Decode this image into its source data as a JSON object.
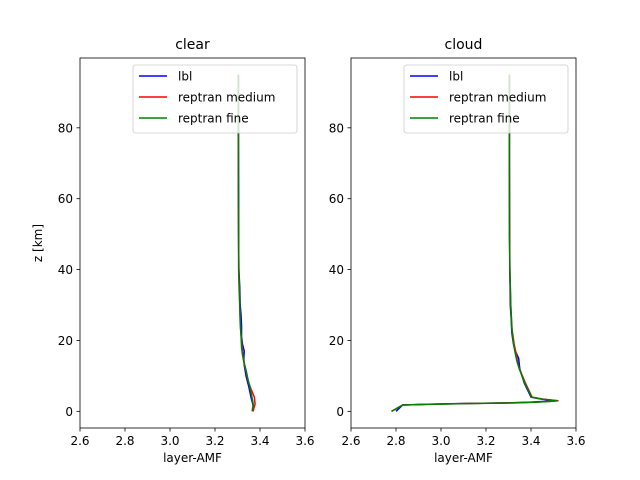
{
  "chart_data": [
    {
      "type": "line",
      "title": "clear",
      "xlabel": "layer-AMF",
      "ylabel": "z [km]",
      "xlim": [
        2.6,
        3.6
      ],
      "ylim": [
        -4.7,
        99.7
      ],
      "xticks": [
        "2.6",
        "2.8",
        "3.0",
        "3.2",
        "3.4",
        "3.6"
      ],
      "yticks": [
        "0",
        "20",
        "40",
        "60",
        "80"
      ],
      "legend_position": "top-right",
      "series": [
        {
          "name": "lbl",
          "color": "#0000ff",
          "x": [
            3.37,
            3.372,
            3.368,
            3.36,
            3.35,
            3.338,
            3.33,
            3.328,
            3.33,
            3.322,
            3.318,
            3.318,
            3.316,
            3.312,
            3.31,
            3.306,
            3.305,
            3.305,
            3.304,
            3.304
          ],
          "y": [
            0,
            1,
            2,
            4,
            7,
            10,
            13,
            15,
            17,
            19,
            21,
            24,
            27,
            30,
            35,
            40,
            50,
            60,
            80,
            95
          ]
        },
        {
          "name": "reptran medium",
          "color": "#ff0000",
          "x": [
            3.368,
            3.378,
            3.375,
            3.362,
            3.35,
            3.34,
            3.332,
            3.326,
            3.322,
            3.318,
            3.314,
            3.312,
            3.31,
            3.308,
            3.306,
            3.305,
            3.304,
            3.304,
            3.304
          ],
          "y": [
            0,
            2,
            4,
            6,
            8,
            11,
            13,
            15,
            17,
            20,
            23,
            26,
            30,
            35,
            40,
            50,
            60,
            80,
            95
          ]
        },
        {
          "name": "reptran fine",
          "color": "#008000",
          "x": [
            3.365,
            3.37,
            3.364,
            3.355,
            3.346,
            3.336,
            3.328,
            3.322,
            3.318,
            3.316,
            3.312,
            3.31,
            3.307,
            3.305,
            3.304,
            3.304,
            3.304
          ],
          "y": [
            0,
            2,
            4,
            7,
            9,
            12,
            14,
            16,
            18,
            21,
            25,
            30,
            35,
            40,
            60,
            80,
            95
          ]
        }
      ]
    },
    {
      "type": "line",
      "title": "cloud",
      "xlabel": "layer-AMF",
      "ylabel": "",
      "xlim": [
        2.6,
        3.6
      ],
      "ylim": [
        -4.7,
        99.7
      ],
      "xticks": [
        "2.6",
        "2.8",
        "3.0",
        "3.2",
        "3.4",
        "3.6"
      ],
      "yticks": [
        "0",
        "20",
        "40",
        "60",
        "80"
      ],
      "legend_position": "top-right",
      "series": [
        {
          "name": "lbl",
          "color": "#0000ff",
          "x": [
            2.8,
            2.83,
            2.94,
            3.1,
            3.3,
            3.4,
            3.46,
            3.51,
            3.44,
            3.4,
            3.385,
            3.37,
            3.36,
            3.35,
            3.345,
            3.33,
            3.322,
            3.315,
            3.312,
            3.308,
            3.306,
            3.305,
            3.304,
            3.304
          ],
          "y": [
            0,
            1.8,
            2.0,
            2.2,
            2.4,
            2.6,
            2.8,
            3.0,
            3.5,
            4,
            6,
            8,
            10,
            12,
            15,
            17,
            19,
            22,
            26,
            30,
            40,
            50,
            70,
            95
          ]
        },
        {
          "name": "reptran medium",
          "color": "#ff0000",
          "x": [
            2.78,
            2.83,
            2.95,
            3.12,
            3.32,
            3.42,
            3.48,
            3.52,
            3.45,
            3.405,
            3.39,
            3.375,
            3.362,
            3.348,
            3.34,
            3.335,
            3.325,
            3.316,
            3.31,
            3.306,
            3.305,
            3.304,
            3.304
          ],
          "y": [
            0,
            1.8,
            2.0,
            2.2,
            2.4,
            2.6,
            2.8,
            3.0,
            3.5,
            4,
            6,
            8,
            10,
            12,
            14,
            16,
            19,
            23,
            30,
            40,
            50,
            70,
            95
          ]
        },
        {
          "name": "reptran fine",
          "color": "#008000",
          "x": [
            2.78,
            2.83,
            2.96,
            3.14,
            3.33,
            3.43,
            3.49,
            3.515,
            3.445,
            3.402,
            3.388,
            3.372,
            3.36,
            3.348,
            3.338,
            3.328,
            3.32,
            3.314,
            3.31,
            3.306,
            3.304,
            3.304,
            3.304
          ],
          "y": [
            0,
            1.8,
            2.0,
            2.2,
            2.4,
            2.6,
            2.8,
            3.0,
            3.5,
            4,
            6,
            8,
            10,
            12,
            14,
            17,
            20,
            24,
            30,
            40,
            50,
            70,
            95
          ]
        }
      ]
    }
  ]
}
